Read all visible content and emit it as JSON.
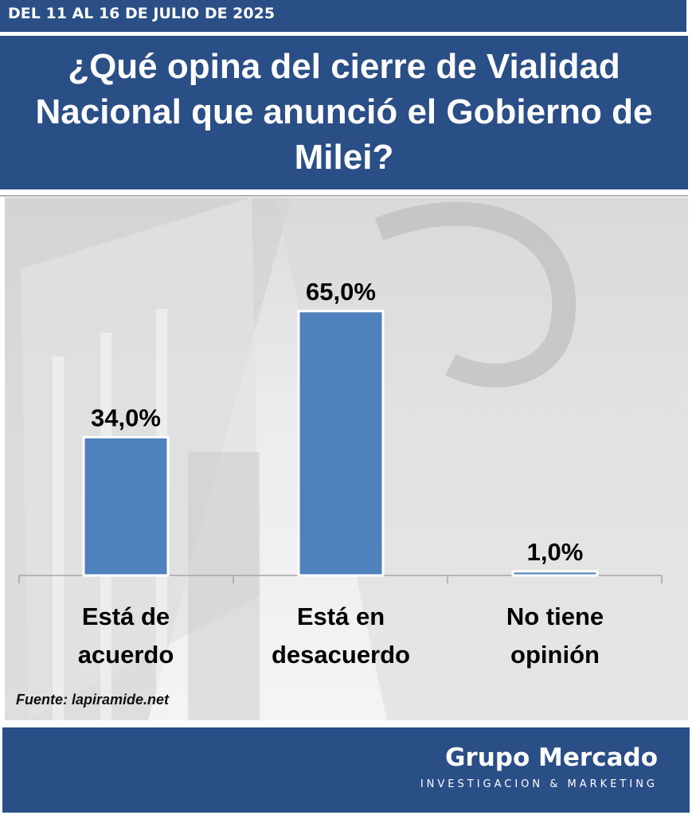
{
  "header": {
    "date_range": "DEL 11 AL 16 DE JULIO DE 2025"
  },
  "chart_data": {
    "type": "bar",
    "title": "¿Qué opina del cierre de Vialidad Nacional que anunció el Gobierno de Milei?",
    "categories": [
      [
        "Está de",
        "acuerdo"
      ],
      [
        "Está en",
        "desacuerdo"
      ],
      [
        "No tiene",
        "opinión"
      ]
    ],
    "values": [
      34.0,
      65.0,
      1.0
    ],
    "data_labels": [
      "34,0%",
      "65,0%",
      "1,0%"
    ],
    "ylim": [
      0,
      100
    ],
    "grid": false,
    "bar_color": "#4f81bd"
  },
  "source": "Fuente: lapiramide.net",
  "brand": {
    "name": "Grupo Mercado",
    "tagline": "INVESTIGACION & MARKETING"
  },
  "colors": {
    "header_bg": "#2a4e86"
  }
}
